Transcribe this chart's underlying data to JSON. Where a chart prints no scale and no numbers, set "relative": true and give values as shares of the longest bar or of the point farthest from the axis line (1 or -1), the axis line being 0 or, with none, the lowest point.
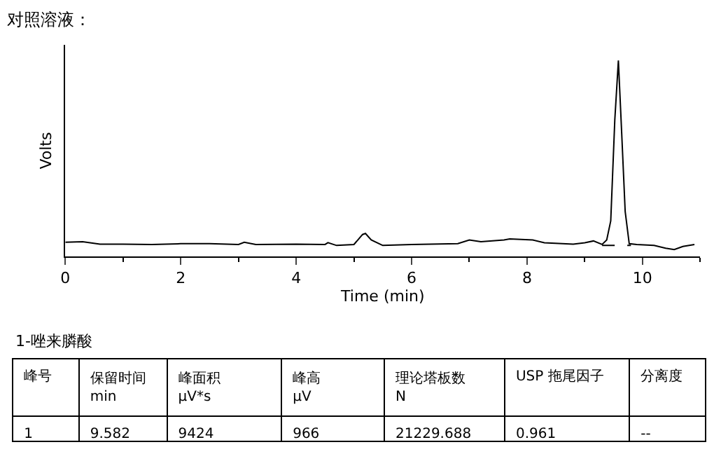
{
  "chart_data": {
    "type": "line",
    "title": "对照溶液：",
    "xlabel": "Time (min)",
    "ylabel": "Volts",
    "relative": true,
    "tick_labels": "x",
    "marker": "none",
    "xlim": [
      0,
      11
    ],
    "xticks": [
      0,
      2,
      4,
      6,
      8,
      10
    ],
    "series": [
      {
        "color": "#000000",
        "line_style": "solid",
        "x": [
          0,
          0.3,
          0.6,
          1.0,
          1.5,
          2.0,
          2.5,
          3.0,
          3.1,
          3.3,
          4.0,
          4.5,
          4.55,
          4.7,
          5.0,
          5.15,
          5.2,
          5.3,
          5.45,
          5.5,
          6.0,
          6.8,
          7.0,
          7.2,
          7.6,
          7.7,
          8.1,
          8.3,
          8.8,
          9.0,
          9.15,
          9.3,
          9.38,
          9.45,
          9.52,
          9.582,
          9.64,
          9.7,
          9.77,
          9.9,
          10.2,
          10.4,
          10.55,
          10.7,
          10.9
        ],
        "values": [
          0.072,
          0.075,
          0.063,
          0.063,
          0.061,
          0.065,
          0.065,
          0.061,
          0.072,
          0.061,
          0.063,
          0.061,
          0.07,
          0.056,
          0.061,
          0.112,
          0.117,
          0.084,
          0.063,
          0.056,
          0.061,
          0.065,
          0.084,
          0.075,
          0.084,
          0.089,
          0.084,
          0.07,
          0.063,
          0.07,
          0.079,
          0.061,
          0.084,
          0.182,
          0.696,
          1.0,
          0.626,
          0.229,
          0.065,
          0.061,
          0.056,
          0.042,
          0.035,
          0.051,
          0.061
        ]
      },
      {
        "color": "#000000",
        "line_style": "dashed",
        "x": [
          9.3,
          9.8
        ],
        "values": [
          0.056,
          0.056
        ]
      }
    ],
    "annotations": [
      "1-唑来膦酸",
      "峰号",
      "保留时间\nmin",
      "峰面积\nμV*s",
      "峰高\nμV",
      "理论塔板数\nN",
      "USP 拖尾因子",
      "分离度",
      "1",
      "9.582",
      "9424",
      "966",
      "21229.688",
      "0.961",
      "--"
    ]
  }
}
